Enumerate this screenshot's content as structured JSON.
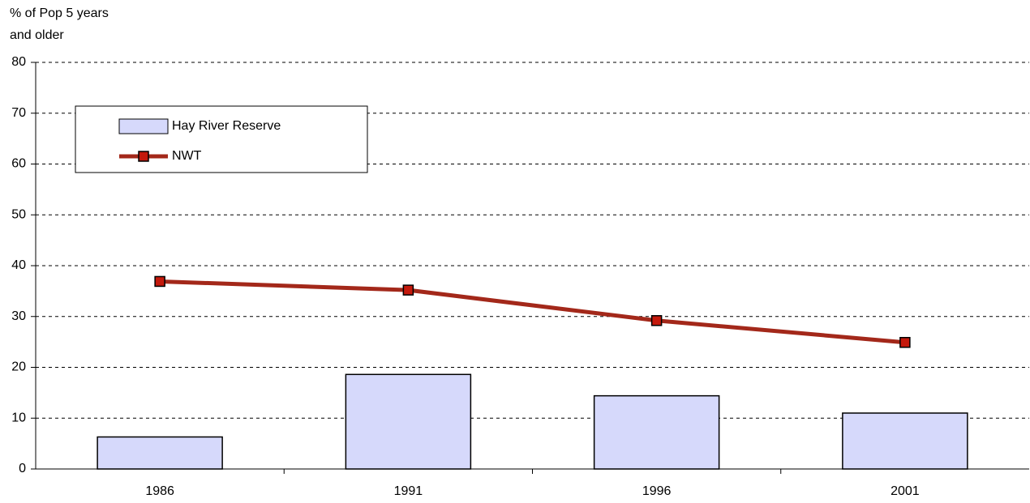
{
  "chart_data": {
    "type": "bar",
    "y_label": [
      "% of Pop 5 years",
      "and older"
    ],
    "categories": [
      "1986",
      "1991",
      "1996",
      "2001"
    ],
    "series": [
      {
        "name": "Hay River Reserve",
        "type": "bar",
        "color": "#d6d9fb",
        "values": [
          6.3,
          18.6,
          14.4,
          11.0
        ]
      },
      {
        "name": "NWT",
        "type": "line",
        "color": "#a3281a",
        "marker_color": "#c4190c",
        "values": [
          36.9,
          35.2,
          29.2,
          24.9
        ]
      }
    ],
    "ylim": [
      0,
      80
    ],
    "yticks": [
      0,
      10,
      20,
      30,
      40,
      50,
      60,
      70,
      80
    ],
    "grid": true,
    "legend": "top-left"
  }
}
